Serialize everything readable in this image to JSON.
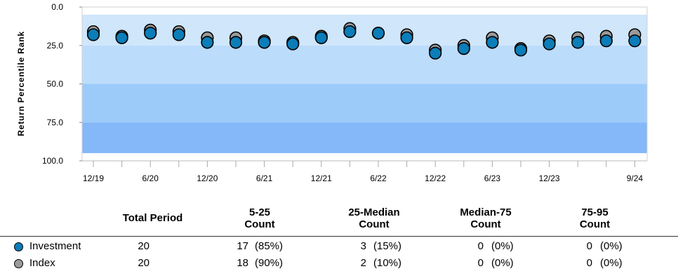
{
  "chart_data": {
    "type": "scatter",
    "ylabel": "Return Percentile Rank",
    "yticks": [
      "0.0",
      "25.0",
      "50.0",
      "75.0",
      "100.0"
    ],
    "ylim": [
      0,
      100
    ],
    "y_inverted": true,
    "xticks": [
      "12/19",
      "6/20",
      "12/20",
      "6/21",
      "12/21",
      "6/22",
      "12/22",
      "6/23",
      "12/23",
      "9/24"
    ],
    "x": [
      "12/19",
      "3/20",
      "6/20",
      "9/20",
      "12/20",
      "3/21",
      "6/21",
      "9/21",
      "12/21",
      "3/22",
      "6/22",
      "9/22",
      "12/22",
      "3/23",
      "6/23",
      "9/23",
      "12/23",
      "3/24",
      "6/24",
      "9/24"
    ],
    "bands": [
      {
        "from": 5,
        "to": 25,
        "color": "#cfe6fb"
      },
      {
        "from": 25,
        "to": 50,
        "color": "#bcdcfb"
      },
      {
        "from": 50,
        "to": 75,
        "color": "#9ccbfa"
      },
      {
        "from": 75,
        "to": 95,
        "color": "#84b8f9"
      }
    ],
    "series": [
      {
        "name": "Index",
        "color": "#9a9a9a",
        "values": [
          16,
          19,
          15,
          16,
          20,
          20,
          22,
          23,
          19,
          14,
          17,
          18,
          28,
          25,
          20,
          27,
          22,
          20,
          19,
          18
        ]
      },
      {
        "name": "Investment",
        "color": "#0b7db8",
        "values": [
          18,
          20,
          17,
          18,
          23,
          23,
          23,
          24,
          20,
          16,
          17,
          20,
          30,
          27,
          23,
          28,
          24,
          23,
          22,
          22
        ]
      }
    ]
  },
  "table": {
    "headers": {
      "total": "Total Period",
      "c1_line1": "5-25",
      "c1_line2": "Count",
      "c2_line1": "25-Median",
      "c2_line2": "Count",
      "c3_line1": "Median-75",
      "c3_line2": "Count",
      "c4_line1": "75-95",
      "c4_line2": "Count"
    },
    "rows": [
      {
        "label": "Investment",
        "color": "#0b7db8",
        "total": "20",
        "c1": "17",
        "c1p": "(85%)",
        "c2": "3",
        "c2p": "(15%)",
        "c3": "0",
        "c3p": "(0%)",
        "c4": "0",
        "c4p": "(0%)"
      },
      {
        "label": "Index",
        "color": "#9a9a9a",
        "total": "20",
        "c1": "18",
        "c1p": "(90%)",
        "c2": "2",
        "c2p": "(10%)",
        "c3": "0",
        "c3p": "(0%)",
        "c4": "0",
        "c4p": "(0%)"
      }
    ]
  }
}
